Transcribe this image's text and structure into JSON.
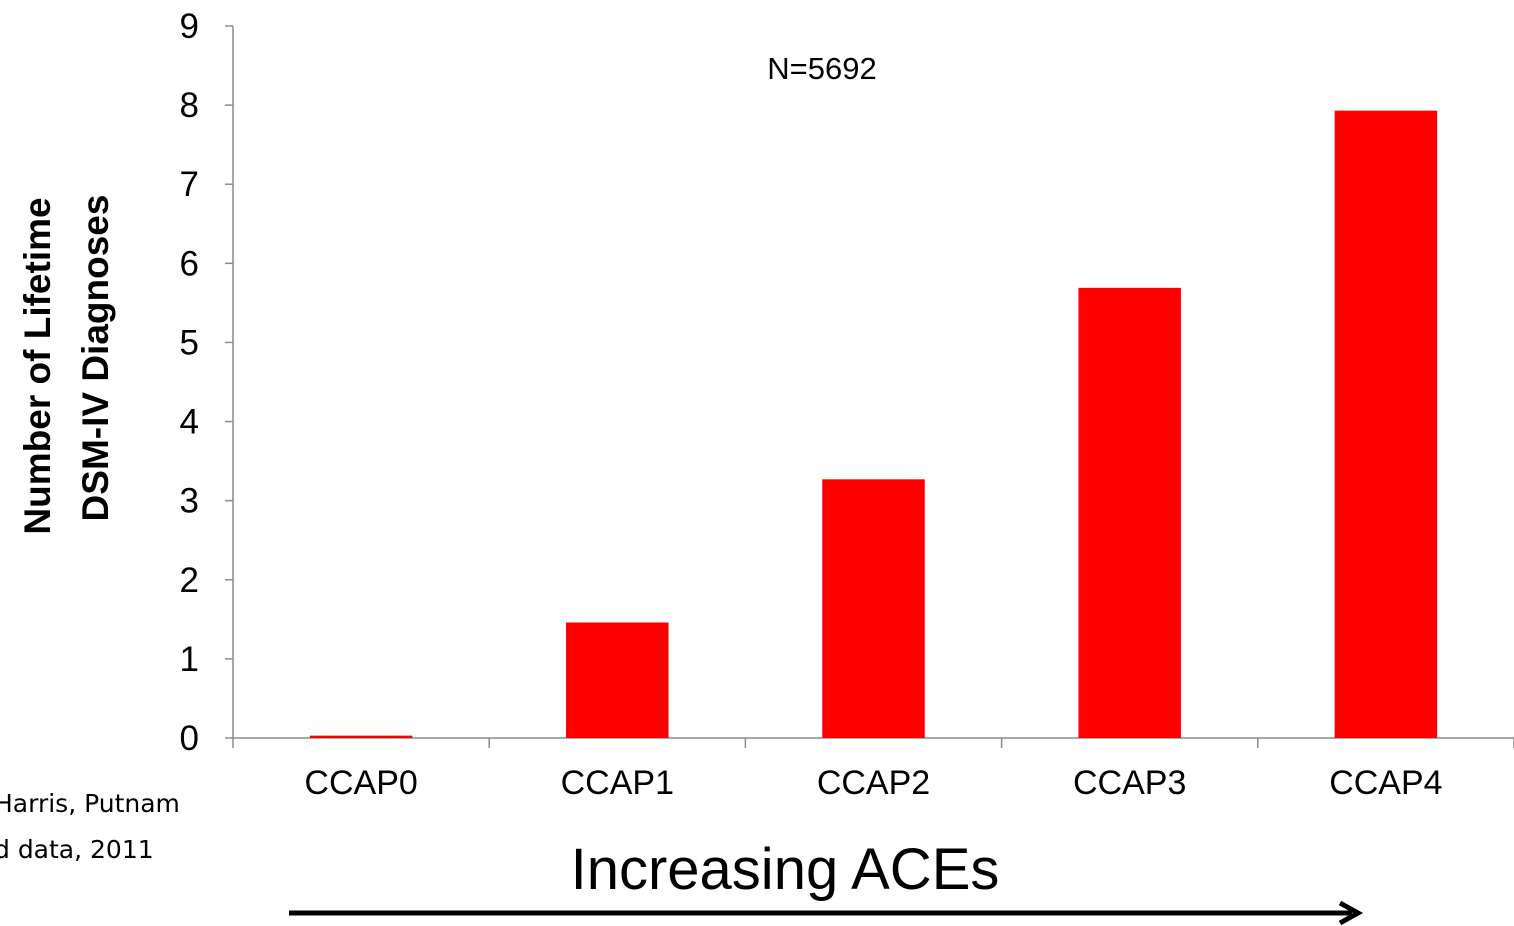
{
  "chart_data": {
    "type": "bar",
    "categories": [
      "CCAP0",
      "CCAP1",
      "CCAP2",
      "CCAP3",
      "CCAP4"
    ],
    "values": [
      0.03,
      1.46,
      3.27,
      5.69,
      7.93
    ],
    "ylabel_line1": "Number of Lifetime",
    "ylabel_line2": "DSM-IV Diagnoses",
    "xlabel": "Increasing ACEs",
    "annotation": "N=5692",
    "ylim": [
      0,
      9
    ],
    "yticks": [
      "0",
      "1",
      "2",
      "3",
      "4",
      "5",
      "6",
      "7",
      "8",
      "9"
    ],
    "bar_color": "#ff0000",
    "grid": false,
    "legend": "none"
  },
  "source": {
    "line1": "Harris, Putnam",
    "line2": "d data, 2011"
  }
}
